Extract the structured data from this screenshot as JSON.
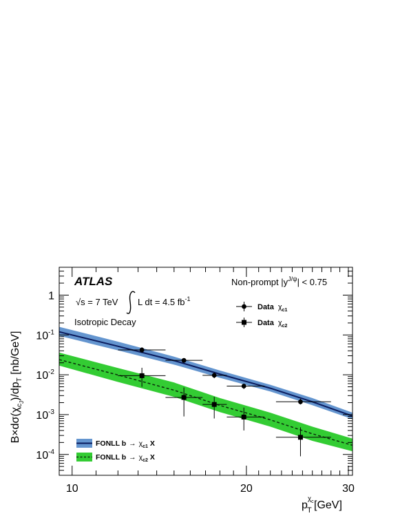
{
  "chart_data": {
    "type": "scatter",
    "experiment": "ATLAS",
    "energy": "√s = 7 TeV",
    "luminosity_label": "L dt = 4.5 fb",
    "luminosity_exponent": "-1",
    "decay": "Isotropic Decay",
    "selection": {
      "prefix": "Non-prompt |y",
      "superscript": "J/ψ",
      "suffix": "| < 0.75"
    },
    "ylabel": {
      "a": "B×dσ(χ",
      "sub1": "c",
      "sub2": "J",
      "b": ")/dp",
      "sub3": "T",
      "c": " [nb/GeV]"
    },
    "xlabel": {
      "p": "p",
      "sup": "χ",
      "supsub": "c",
      "sub": "T",
      "unit": " [GeV]"
    },
    "x_scale": "log",
    "y_scale": "log",
    "xlim": [
      9.5,
      30.5
    ],
    "ylim": [
      3e-05,
      5
    ],
    "x_ticks": [
      {
        "value": 10,
        "label": "10"
      },
      {
        "value": 20,
        "label": "20"
      },
      {
        "value": 30,
        "label": "30"
      }
    ],
    "y_ticks": [
      {
        "value": 1,
        "base": "1",
        "exp": ""
      },
      {
        "value": 0.1,
        "base": "10",
        "exp": "-1"
      },
      {
        "value": 0.01,
        "base": "10",
        "exp": "-2"
      },
      {
        "value": 0.001,
        "base": "10",
        "exp": "-3"
      },
      {
        "value": 0.0001,
        "base": "10",
        "exp": "-4"
      }
    ],
    "series": [
      {
        "legend": {
          "text": "Data",
          "sym": "χ",
          "sub": "c1"
        },
        "marker": "circle",
        "color": "#000000",
        "points": [
          {
            "x": 13.2,
            "xlo": 12.0,
            "xhi": 14.5,
            "y": 0.042,
            "ylo": 0.036,
            "yhi": 0.049
          },
          {
            "x": 15.6,
            "xlo": 14.5,
            "xhi": 16.8,
            "y": 0.023,
            "ylo": 0.0205,
            "yhi": 0.026
          },
          {
            "x": 17.6,
            "xlo": 16.8,
            "xhi": 18.5,
            "y": 0.0097,
            "ylo": 0.0082,
            "yhi": 0.0115
          },
          {
            "x": 19.8,
            "xlo": 18.5,
            "xhi": 21.5,
            "y": 0.0052,
            "ylo": 0.0044,
            "yhi": 0.006
          },
          {
            "x": 24.8,
            "xlo": 22.5,
            "xhi": 28.0,
            "y": 0.0021,
            "ylo": 0.0018,
            "yhi": 0.0025
          }
        ]
      },
      {
        "legend": {
          "text": "Data",
          "sym": "χ",
          "sub": "c2"
        },
        "marker": "square",
        "color": "#000000",
        "points": [
          {
            "x": 13.2,
            "xlo": 12.0,
            "xhi": 14.5,
            "y": 0.0095,
            "ylo": 0.005,
            "yhi": 0.015
          },
          {
            "x": 15.6,
            "xlo": 14.5,
            "xhi": 16.8,
            "y": 0.0027,
            "ylo": 0.0009,
            "yhi": 0.0048
          },
          {
            "x": 17.6,
            "xlo": 16.8,
            "xhi": 18.5,
            "y": 0.0018,
            "ylo": 0.0008,
            "yhi": 0.0028
          },
          {
            "x": 19.8,
            "xlo": 18.5,
            "xhi": 21.5,
            "y": 0.00087,
            "ylo": 0.0004,
            "yhi": 0.0015
          },
          {
            "x": 24.8,
            "xlo": 22.5,
            "xhi": 28.0,
            "y": 0.00027,
            "ylo": 9e-05,
            "yhi": 0.00048
          }
        ]
      }
    ],
    "bands": [
      {
        "legend": {
          "text": "FONLL b",
          "arrow": "→",
          "sym": "χ",
          "sub": "c1",
          "suffix": " X"
        },
        "fill": "#6495cf",
        "line_color": "#0a1a5c",
        "line_style": "solid",
        "x": [
          9.5,
          12,
          15,
          18,
          22,
          26,
          30.5
        ],
        "central": [
          0.12,
          0.052,
          0.0227,
          0.0104,
          0.0046,
          0.0021,
          0.00092
        ],
        "upper": [
          0.16,
          0.068,
          0.0285,
          0.0128,
          0.0056,
          0.0026,
          0.00112
        ],
        "lower": [
          0.095,
          0.041,
          0.018,
          0.0084,
          0.0038,
          0.00172,
          0.00077
        ]
      },
      {
        "legend": {
          "text": "FONLL b",
          "arrow": "→",
          "sym": "χ",
          "sub": "c2",
          "suffix": " X"
        },
        "fill": "#33cc33",
        "line_color": "#0a2a0a",
        "line_style": "dashed",
        "x": [
          9.5,
          12,
          15,
          18,
          22,
          26,
          30.5
        ],
        "central": [
          0.024,
          0.0099,
          0.0041,
          0.0017,
          0.00074,
          0.00033,
          0.00017
        ],
        "upper": [
          0.036,
          0.0148,
          0.0064,
          0.0026,
          0.00112,
          0.0005,
          0.00025
        ],
        "lower": [
          0.017,
          0.0066,
          0.0028,
          0.00116,
          0.0005,
          0.00022,
          0.00012
        ]
      }
    ]
  }
}
